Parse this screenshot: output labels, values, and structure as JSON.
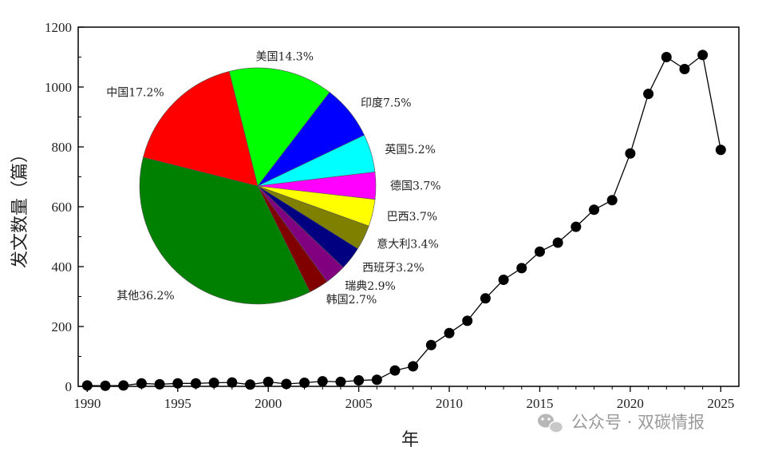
{
  "chart_data": [
    {
      "type": "line",
      "xlabel": "年",
      "ylabel": "发文数量（篇）",
      "xlim": [
        1989.5,
        2026
      ],
      "ylim": [
        0,
        1200
      ],
      "xticks": [
        "1990",
        "1995",
        "2000",
        "2005",
        "2010",
        "2015",
        "2020",
        "2025"
      ],
      "yticks": [
        "0",
        "200",
        "400",
        "600",
        "800",
        "1000",
        "1200"
      ],
      "grid": false,
      "marker": "circle",
      "color": "#000000",
      "x": [
        1990,
        1991,
        1992,
        1993,
        1994,
        1995,
        1996,
        1997,
        1998,
        1999,
        2000,
        2001,
        2002,
        2003,
        2004,
        2005,
        2006,
        2007,
        2008,
        2009,
        2010,
        2011,
        2012,
        2013,
        2014,
        2015,
        2016,
        2017,
        2018,
        2019,
        2020,
        2021,
        2022,
        2023,
        2024,
        2025
      ],
      "y": [
        3,
        2,
        3,
        10,
        7,
        10,
        10,
        12,
        13,
        6,
        15,
        8,
        12,
        17,
        15,
        20,
        22,
        53,
        67,
        138,
        178,
        219,
        294,
        356,
        395,
        450,
        480,
        533,
        590,
        622,
        778,
        977,
        1100,
        1060,
        1107,
        790
      ]
    },
    {
      "type": "pie",
      "slices": [
        {
          "label": "美国14.3%",
          "value": 14.3,
          "color": "#00ff00"
        },
        {
          "label": "印度7.5%",
          "value": 7.5,
          "color": "#0000ff"
        },
        {
          "label": "英国5.2%",
          "value": 5.2,
          "color": "#00ffff"
        },
        {
          "label": "德国3.7%",
          "value": 3.7,
          "color": "#ff00ff"
        },
        {
          "label": "巴西3.7%",
          "value": 3.7,
          "color": "#ffff00"
        },
        {
          "label": "意大利3.4%",
          "value": 3.4,
          "color": "#808000"
        },
        {
          "label": "西班牙3.2%",
          "value": 3.2,
          "color": "#000080"
        },
        {
          "label": "瑞典2.9%",
          "value": 2.9,
          "color": "#800080"
        },
        {
          "label": "韩国2.7%",
          "value": 2.7,
          "color": "#800000"
        },
        {
          "label": "其他36.2%",
          "value": 36.2,
          "color": "#008000"
        },
        {
          "label": "中国17.2%",
          "value": 17.2,
          "color": "#ff0000"
        }
      ]
    }
  ],
  "watermark": {
    "icon": "wechat-icon",
    "text": "公众号 · 双碳情报"
  }
}
